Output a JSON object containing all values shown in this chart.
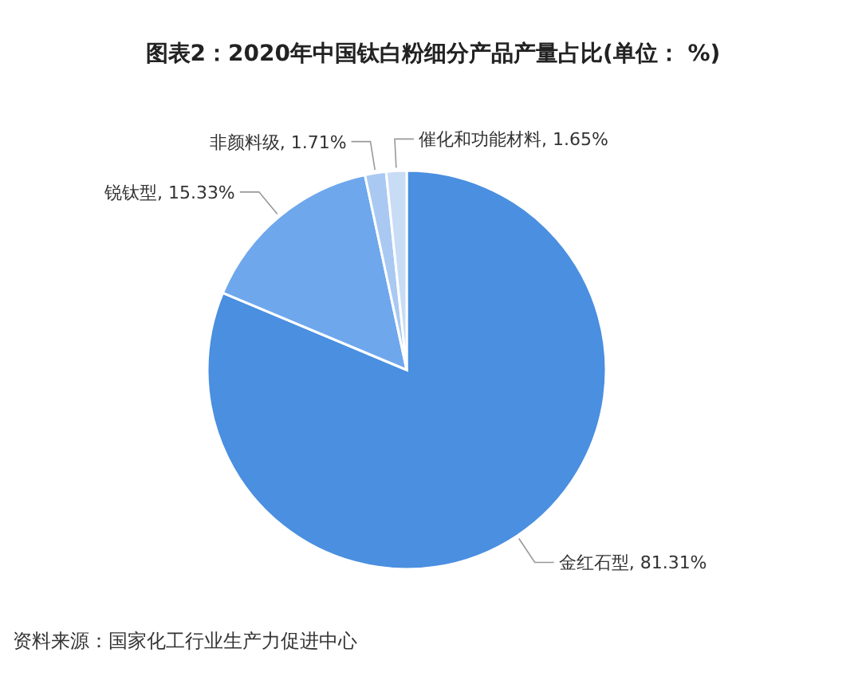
{
  "chart_data": {
    "type": "pie",
    "title": "图表2：2020年中国钛白粉细分产品产量占比(单位： %)",
    "categories": [
      "金红石型",
      "锐钛型",
      "非颜料级",
      "催化和功能材料"
    ],
    "values": [
      81.31,
      15.33,
      1.71,
      1.65
    ],
    "value_labels": [
      "81.31%",
      "15.33%",
      "1.71%",
      "1.65%"
    ],
    "colors": [
      "#4a8fe0",
      "#6ea7ec",
      "#a9c9f2",
      "#c9dcf5"
    ],
    "annotations": [
      "资料来源：国家化工行业生产力促进中心"
    ]
  }
}
